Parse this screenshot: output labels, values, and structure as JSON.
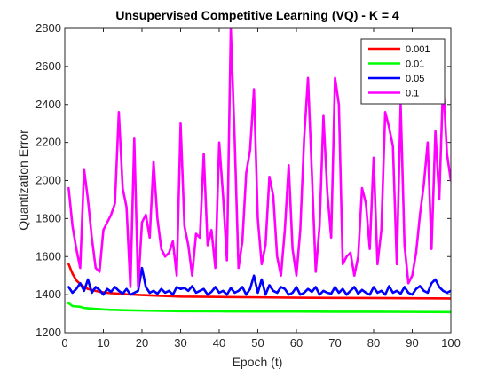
{
  "chart_data": {
    "type": "line",
    "title": "Unsupervised Competitive Learning (VQ) - K = 4",
    "xlabel": "Epoch (t)",
    "ylabel": "Quantization Error",
    "xlim": [
      0,
      100
    ],
    "ylim": [
      1200,
      2800
    ],
    "xticks": [
      0,
      10,
      20,
      30,
      40,
      50,
      60,
      70,
      80,
      90,
      100
    ],
    "yticks": [
      1200,
      1400,
      1600,
      1800,
      2000,
      2200,
      2400,
      2600,
      2800
    ],
    "grid": false,
    "legend_position": "top-right",
    "series": [
      {
        "name": "0.001",
        "color": "#ff0000",
        "x": [
          1,
          2,
          3,
          4,
          5,
          6,
          7,
          8,
          9,
          10,
          12,
          14,
          16,
          18,
          20,
          25,
          30,
          40,
          50,
          60,
          70,
          80,
          90,
          100
        ],
        "y": [
          1560,
          1510,
          1475,
          1455,
          1440,
          1430,
          1425,
          1420,
          1415,
          1412,
          1408,
          1405,
          1402,
          1400,
          1398,
          1394,
          1390,
          1388,
          1386,
          1384,
          1383,
          1382,
          1381,
          1380
        ]
      },
      {
        "name": "0.01",
        "color": "#00ff00",
        "x": [
          1,
          2,
          3,
          4,
          5,
          6,
          8,
          10,
          12,
          15,
          20,
          30,
          40,
          50,
          60,
          70,
          80,
          90,
          100
        ],
        "y": [
          1355,
          1340,
          1338,
          1336,
          1330,
          1328,
          1325,
          1322,
          1320,
          1318,
          1316,
          1313,
          1312,
          1311,
          1311,
          1310,
          1310,
          1309,
          1308
        ]
      },
      {
        "name": "0.05",
        "color": "#0000ff",
        "x": [
          1,
          2,
          3,
          4,
          5,
          6,
          7,
          8,
          9,
          10,
          11,
          12,
          13,
          14,
          15,
          16,
          17,
          18,
          19,
          20,
          21,
          22,
          23,
          24,
          25,
          26,
          27,
          28,
          29,
          30,
          31,
          32,
          33,
          34,
          35,
          36,
          37,
          38,
          39,
          40,
          41,
          42,
          43,
          44,
          45,
          46,
          47,
          48,
          49,
          50,
          51,
          52,
          53,
          54,
          55,
          56,
          57,
          58,
          59,
          60,
          61,
          62,
          63,
          64,
          65,
          66,
          67,
          68,
          69,
          70,
          71,
          72,
          73,
          74,
          75,
          76,
          77,
          78,
          79,
          80,
          81,
          82,
          83,
          84,
          85,
          86,
          87,
          88,
          89,
          90,
          91,
          92,
          93,
          94,
          95,
          96,
          97,
          98,
          99,
          100
        ],
        "y": [
          1440,
          1410,
          1430,
          1460,
          1420,
          1480,
          1410,
          1440,
          1425,
          1400,
          1430,
          1415,
          1440,
          1420,
          1405,
          1430,
          1400,
          1410,
          1420,
          1540,
          1440,
          1410,
          1420,
          1405,
          1430,
          1410,
          1420,
          1400,
          1440,
          1430,
          1435,
          1420,
          1445,
          1410,
          1420,
          1430,
          1400,
          1415,
          1440,
          1410,
          1420,
          1400,
          1435,
          1410,
          1420,
          1440,
          1400,
          1430,
          1500,
          1410,
          1480,
          1400,
          1450,
          1420,
          1410,
          1440,
          1430,
          1400,
          1410,
          1440,
          1400,
          1410,
          1430,
          1415,
          1440,
          1400,
          1420,
          1410,
          1405,
          1440,
          1410,
          1430,
          1400,
          1420,
          1440,
          1405,
          1425,
          1410,
          1400,
          1440,
          1410,
          1420,
          1400,
          1445,
          1410,
          1420,
          1405,
          1440,
          1410,
          1400,
          1430,
          1445,
          1420,
          1410,
          1460,
          1480,
          1440,
          1420,
          1410,
          1420
        ]
      },
      {
        "name": "0.1",
        "color": "#ff00ff",
        "x": [
          1,
          2,
          3,
          4,
          5,
          6,
          7,
          8,
          9,
          10,
          11,
          12,
          13,
          14,
          15,
          16,
          17,
          18,
          19,
          20,
          21,
          22,
          23,
          24,
          25,
          26,
          27,
          28,
          29,
          30,
          31,
          32,
          33,
          34,
          35,
          36,
          37,
          38,
          39,
          40,
          41,
          42,
          43,
          44,
          45,
          46,
          47,
          48,
          49,
          50,
          51,
          52,
          53,
          54,
          55,
          56,
          57,
          58,
          59,
          60,
          61,
          62,
          63,
          64,
          65,
          66,
          67,
          68,
          69,
          70,
          71,
          72,
          73,
          74,
          75,
          76,
          77,
          78,
          79,
          80,
          81,
          82,
          83,
          84,
          85,
          86,
          87,
          88,
          89,
          90,
          91,
          92,
          93,
          94,
          95,
          96,
          97,
          98,
          99,
          100
        ],
        "y": [
          1960,
          1760,
          1640,
          1540,
          2060,
          1900,
          1700,
          1540,
          1520,
          1740,
          1780,
          1820,
          1880,
          2360,
          1960,
          1860,
          1440,
          2220,
          1440,
          1780,
          1820,
          1700,
          2100,
          1800,
          1640,
          1600,
          1620,
          1680,
          1500,
          2300,
          1760,
          1660,
          1500,
          1720,
          1700,
          2140,
          1660,
          1740,
          1540,
          2200,
          1920,
          1580,
          2800,
          2220,
          1540,
          1680,
          2040,
          2160,
          2480,
          1800,
          1560,
          1660,
          2020,
          1920,
          1600,
          1500,
          1740,
          2080,
          1640,
          1500,
          1740,
          2220,
          2540,
          2040,
          1520,
          1760,
          2340,
          1940,
          1700,
          2540,
          2400,
          1560,
          1600,
          1620,
          1500,
          1600,
          1960,
          1880,
          1640,
          2120,
          1560,
          1740,
          2360,
          2280,
          2180,
          1560,
          2400,
          1660,
          1460,
          1500,
          1620,
          1820,
          1980,
          2200,
          1640,
          2260,
          1900,
          2520,
          2140,
          2000
        ]
      }
    ]
  }
}
